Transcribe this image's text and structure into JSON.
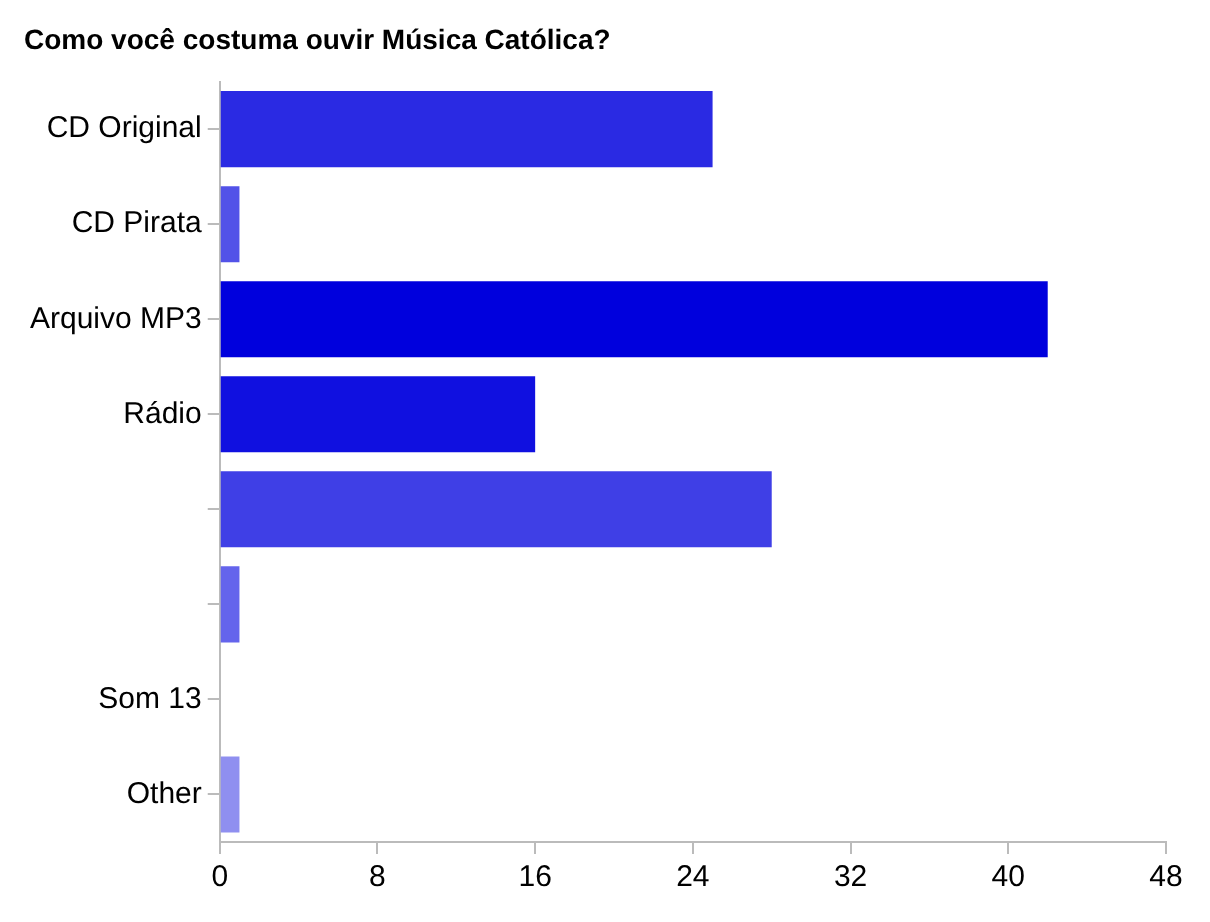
{
  "chart_data": {
    "type": "bar",
    "orientation": "horizontal",
    "title": "Como você costuma ouvir Música Católica?",
    "categories": [
      "CD Original",
      "CD Pirata",
      "Arquivo MP3",
      "Rádio",
      null,
      null,
      "Som 13",
      "Other"
    ],
    "values": [
      25,
      1,
      42,
      16,
      28,
      1,
      0,
      1
    ],
    "colors": [
      "#2a2ae3",
      "#5252e8",
      "#0000dd",
      "#1010e0",
      "#3f3fe6",
      "#6464ec",
      "#7777ee",
      "#8f8ff0"
    ],
    "xlim": [
      0,
      48
    ],
    "xticks": [
      0,
      8,
      16,
      24,
      32,
      40,
      48
    ],
    "grid": false,
    "legend": false
  }
}
